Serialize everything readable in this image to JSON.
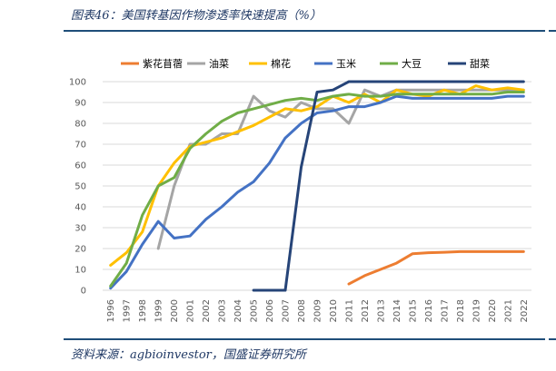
{
  "header": {
    "title": "图表46：美国转基因作物渗透率快速提高（%）"
  },
  "footer": {
    "source": "资料来源：agbioinvestor，国盛证券研究所"
  },
  "chart_data": {
    "type": "line",
    "ylim": [
      0,
      100
    ],
    "yticks": [
      0,
      10,
      20,
      30,
      40,
      50,
      60,
      70,
      80,
      90,
      100
    ],
    "x": [
      "1996",
      "1997",
      "1998",
      "1999",
      "2000",
      "2001",
      "2002",
      "2003",
      "2004",
      "2005",
      "2006",
      "2007",
      "2008",
      "2009",
      "2010",
      "2011",
      "2012",
      "2013",
      "2014",
      "2015",
      "2016",
      "2017",
      "2018",
      "2019",
      "2020",
      "2021",
      "2022"
    ],
    "grid": true,
    "legend_position": "top",
    "series": [
      {
        "name": "紫花苜蓿",
        "color": "#ed7d31",
        "values": [
          null,
          null,
          null,
          null,
          null,
          null,
          null,
          null,
          null,
          null,
          null,
          null,
          null,
          null,
          null,
          3,
          7,
          10,
          13,
          17.5,
          18,
          18.2,
          18.5,
          18.5,
          18.5,
          18.5,
          18.5
        ]
      },
      {
        "name": "油菜",
        "color": "#a5a5a5",
        "values": [
          null,
          null,
          null,
          20,
          50,
          70,
          70,
          75,
          75,
          93,
          86,
          83,
          90,
          87,
          87,
          80,
          96,
          93,
          96,
          96,
          96,
          96,
          96,
          96,
          96,
          96,
          96
        ]
      },
      {
        "name": "棉花",
        "color": "#ffc000",
        "values": [
          12,
          18,
          28,
          50,
          61,
          69,
          71,
          73,
          76,
          79,
          83,
          87,
          86,
          88,
          93,
          90,
          94,
          90,
          96,
          94,
          93,
          96,
          94,
          98,
          96,
          97,
          96
        ]
      },
      {
        "name": "玉米",
        "color": "#4472c4",
        "values": [
          1,
          9,
          22,
          33,
          25,
          26,
          34,
          40,
          47,
          52,
          61,
          73,
          80,
          85,
          86,
          88,
          88,
          90,
          93,
          92,
          92,
          92,
          92,
          92,
          92,
          93,
          93
        ]
      },
      {
        "name": "大豆",
        "color": "#70ad47",
        "values": [
          2,
          13,
          36,
          50,
          54,
          68,
          75,
          81,
          85,
          87,
          89,
          91,
          92,
          91,
          93,
          94,
          93,
          93,
          94,
          94,
          94,
          94,
          94,
          94,
          94,
          95,
          95
        ]
      },
      {
        "name": "甜菜",
        "color": "#264478",
        "values": [
          null,
          null,
          null,
          null,
          null,
          null,
          null,
          null,
          null,
          0,
          0,
          0,
          59,
          95,
          96,
          100,
          100,
          100,
          100,
          100,
          100,
          100,
          100,
          100,
          100,
          100,
          100
        ]
      }
    ]
  }
}
